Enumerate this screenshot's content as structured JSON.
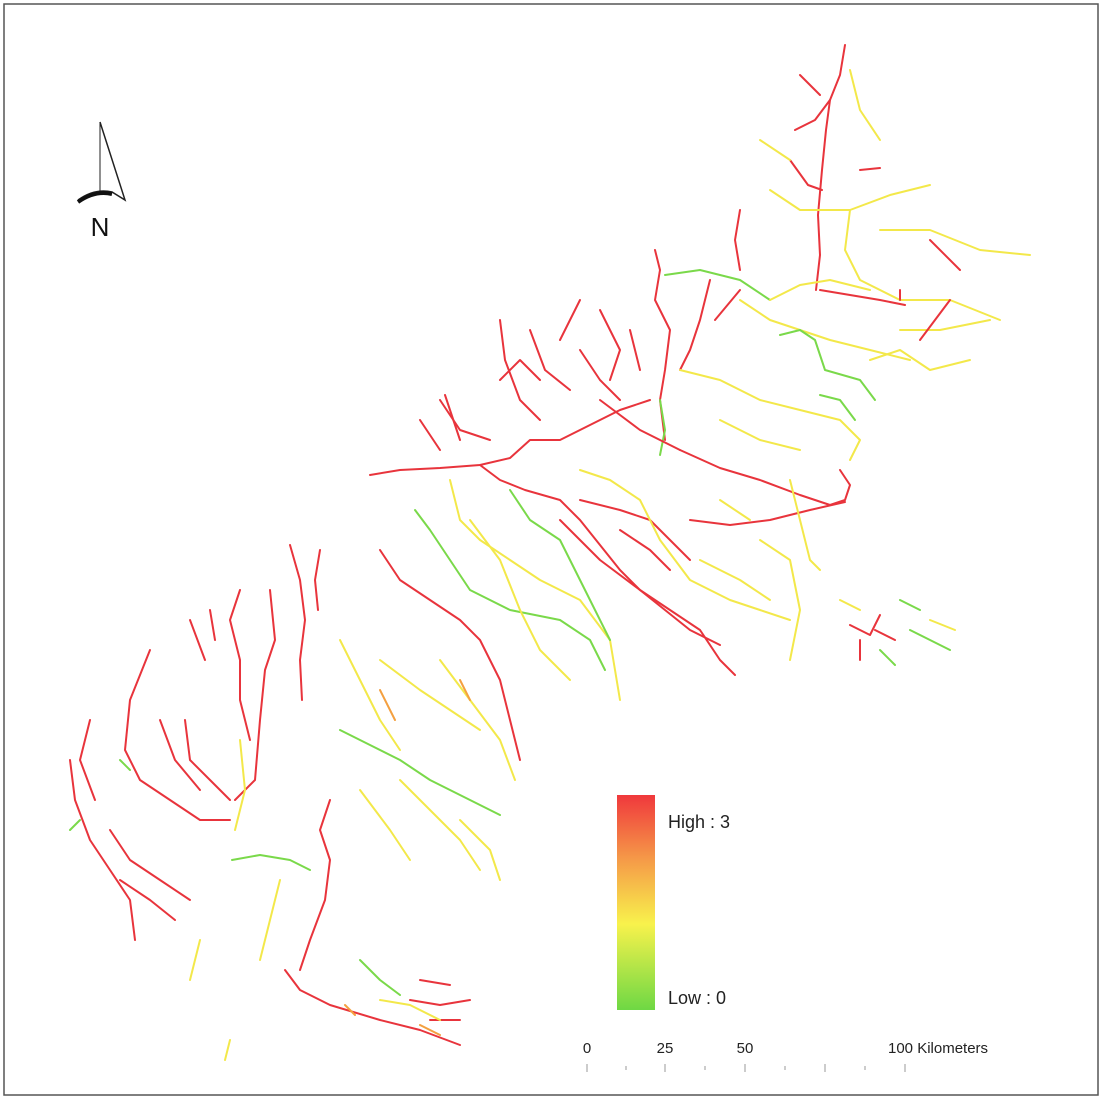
{
  "north_label": "N",
  "legend": {
    "high": "High : 3",
    "low": "Low : 0"
  },
  "scale_bar": {
    "labels": [
      "0",
      "25",
      "50",
      "100 Kilometers"
    ]
  }
}
